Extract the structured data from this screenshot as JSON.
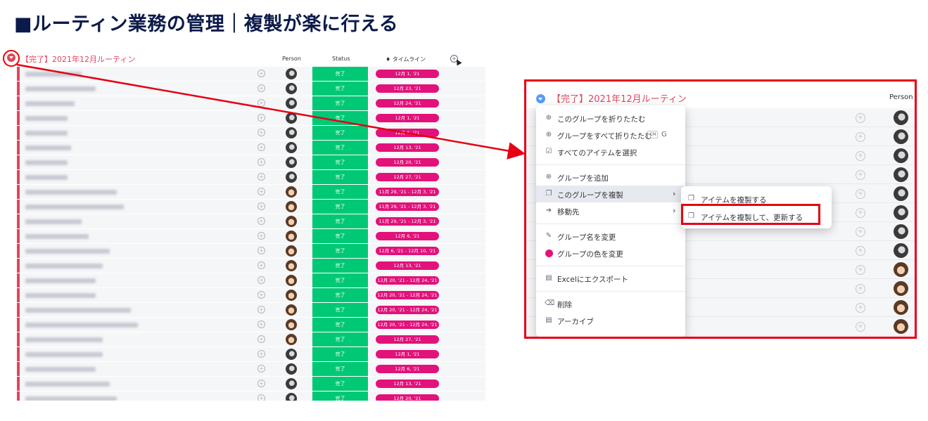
{
  "headline": "■ルーティン業務の管理｜複製が楽に行える",
  "board": {
    "group_title": "【完了】2021年12月ルーティン",
    "columns": {
      "person": "Person",
      "status": "Status",
      "timeline": "タイムライン"
    },
    "add_column_icon": "plus-circle-icon",
    "rows": [
      {
        "status": "完了",
        "timeline": "12月 1, '21",
        "avatar": "a"
      },
      {
        "status": "完了",
        "timeline": "12月 23, '21",
        "avatar": "a"
      },
      {
        "status": "完了",
        "timeline": "12月 24, '21",
        "avatar": "a"
      },
      {
        "status": "完了",
        "timeline": "12月 1, '21",
        "avatar": "a"
      },
      {
        "status": "完了",
        "timeline": "12月 6, '21",
        "avatar": "a"
      },
      {
        "status": "完了",
        "timeline": "12月 13, '21",
        "avatar": "a"
      },
      {
        "status": "完了",
        "timeline": "12月 20, '21",
        "avatar": "a"
      },
      {
        "status": "完了",
        "timeline": "12月 27, '21",
        "avatar": "a"
      },
      {
        "status": "完了",
        "timeline": "11月 29, '21 - 12月 3, '21",
        "avatar": "b"
      },
      {
        "status": "完了",
        "timeline": "11月 29, '21 - 12月 3, '21",
        "avatar": "b"
      },
      {
        "status": "完了",
        "timeline": "11月 29, '21 - 12月 3, '21",
        "avatar": "b"
      },
      {
        "status": "完了",
        "timeline": "12月 6, '21",
        "avatar": "b"
      },
      {
        "status": "完了",
        "timeline": "12月 6, '21 - 12月 10, '21",
        "avatar": "b"
      },
      {
        "status": "完了",
        "timeline": "12月 13, '21",
        "avatar": "b"
      },
      {
        "status": "完了",
        "timeline": "12月 20, '21 - 12月 24, '21",
        "avatar": "b"
      },
      {
        "status": "完了",
        "timeline": "12月 20, '21 - 12月 24, '21",
        "avatar": "b"
      },
      {
        "status": "完了",
        "timeline": "12月 20, '21 - 12月 24, '21",
        "avatar": "b"
      },
      {
        "status": "完了",
        "timeline": "12月 20, '21 - 12月 24, '21",
        "avatar": "b"
      },
      {
        "status": "完了",
        "timeline": "12月 27, '21",
        "avatar": "b"
      },
      {
        "status": "完了",
        "timeline": "12月 1, '21",
        "avatar": "a"
      },
      {
        "status": "完了",
        "timeline": "12月 6, '21",
        "avatar": "a"
      },
      {
        "status": "完了",
        "timeline": "12月 13, '21",
        "avatar": "a"
      },
      {
        "status": "完了",
        "timeline": "12月 20, '21",
        "avatar": "a"
      }
    ]
  },
  "zoom": {
    "group_title": "【完了】2021年12月ルーティン",
    "person_header": "Person",
    "avatars": [
      "a",
      "a",
      "a",
      "a",
      "a",
      "a",
      "a",
      "a",
      "b",
      "b",
      "b",
      "b"
    ],
    "menu": {
      "collapse_group": "このグループを折りたたむ",
      "collapse_all": "グループをすべて折りたたむ",
      "shortcut_key": "G",
      "select_all": "すべてのアイテムを選択",
      "add_group": "グループを追加",
      "duplicate_group": "このグループを複製",
      "move_to": "移動先",
      "rename_group": "グループ名を変更",
      "change_color": "グループの色を変更",
      "export_excel": "Excelにエクスポート",
      "delete": "削除",
      "archive": "アーカイブ"
    },
    "submenu": {
      "duplicate_items": "アイテムを複製する",
      "duplicate_items_updates": "アイテムを複製して、更新する"
    }
  },
  "colors": {
    "done": "#00c875",
    "timeline": "#e2127a",
    "group": "#e2445c",
    "highlight": "#e60012"
  }
}
